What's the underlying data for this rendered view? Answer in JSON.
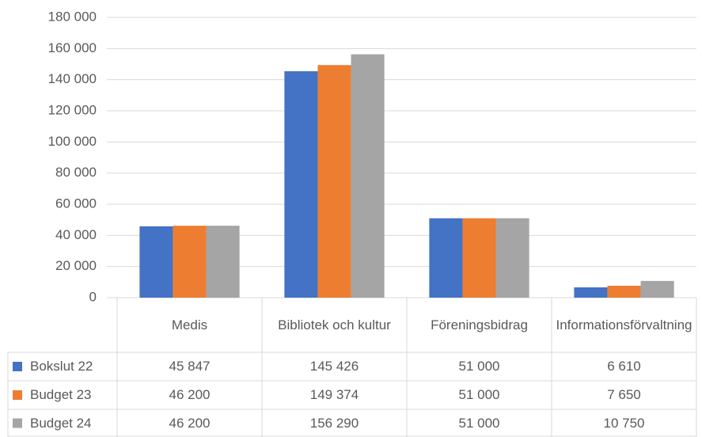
{
  "chart_data": {
    "type": "bar",
    "categories": [
      "Medis",
      "Bibliotek och kultur",
      "Föreningsbidrag",
      "Informationsförvaltning"
    ],
    "series": [
      {
        "name": "Bokslut 22",
        "color": "#4472c4",
        "values": [
          45847,
          145426,
          51000,
          6610
        ],
        "value_labels": [
          "45 847",
          "145 426",
          "51 000",
          "6 610"
        ]
      },
      {
        "name": "Budget 23",
        "color": "#ed7d31",
        "values": [
          46200,
          149374,
          51000,
          7650
        ],
        "value_labels": [
          "46 200",
          "149 374",
          "51 000",
          "7 650"
        ]
      },
      {
        "name": "Budget 24",
        "color": "#a5a5a5",
        "values": [
          46200,
          156290,
          51000,
          10750
        ],
        "value_labels": [
          "46 200",
          "156 290",
          "51 000",
          "10 750"
        ]
      }
    ],
    "ylim": [
      0,
      180000
    ],
    "yticks": [
      0,
      {
        "value": 20000,
        "label": "20 000"
      },
      {
        "value": 40000,
        "label": "40 000"
      },
      {
        "value": 60000,
        "label": "60 000"
      },
      {
        "value": 80000,
        "label": "80 000"
      },
      {
        "value": 100000,
        "label": "100 000"
      },
      {
        "value": 120000,
        "label": "120 000"
      },
      {
        "value": 140000,
        "label": "140 000"
      },
      {
        "value": 160000,
        "label": "160 000"
      },
      {
        "value": 180000,
        "label": "180 000"
      }
    ],
    "grid": true
  }
}
